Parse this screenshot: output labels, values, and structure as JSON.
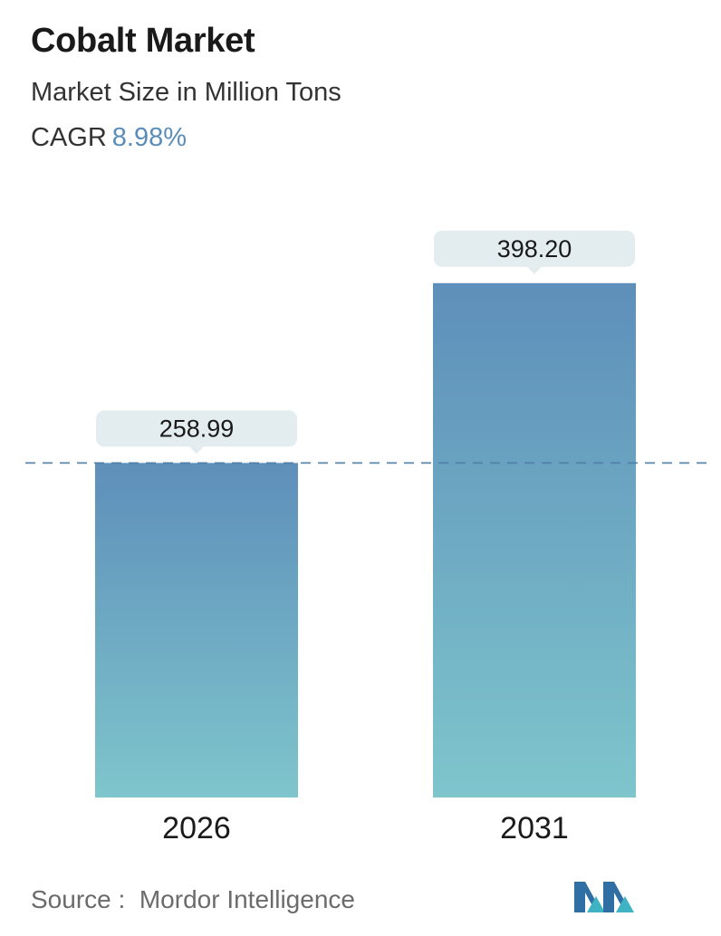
{
  "header": {
    "title": "Cobalt Market",
    "subtitle": "Market Size in Million Tons",
    "cagr_label": "CAGR",
    "cagr_value": "8.98%"
  },
  "chart_data": {
    "type": "bar",
    "categories": [
      "2026",
      "2031"
    ],
    "values": [
      258.99,
      398.2
    ],
    "value_labels": [
      "258.99",
      "398.20"
    ],
    "title": "Cobalt Market",
    "xlabel": "",
    "ylabel": "Market Size in Million Tons",
    "ylim": [
      0,
      445
    ],
    "grid": false,
    "reference_line": "dashed line at 2026 value",
    "colors": {
      "bar_top": "#5e8fba",
      "bar_bottom": "#7ec5cc",
      "label_box": "#e3ecee",
      "dashed_line": "#4f7ea6"
    }
  },
  "footer": {
    "source_label": "Source :",
    "source_value": "Mordor Intelligence",
    "logo_icon": "mordor-intelligence-logo-icon"
  }
}
